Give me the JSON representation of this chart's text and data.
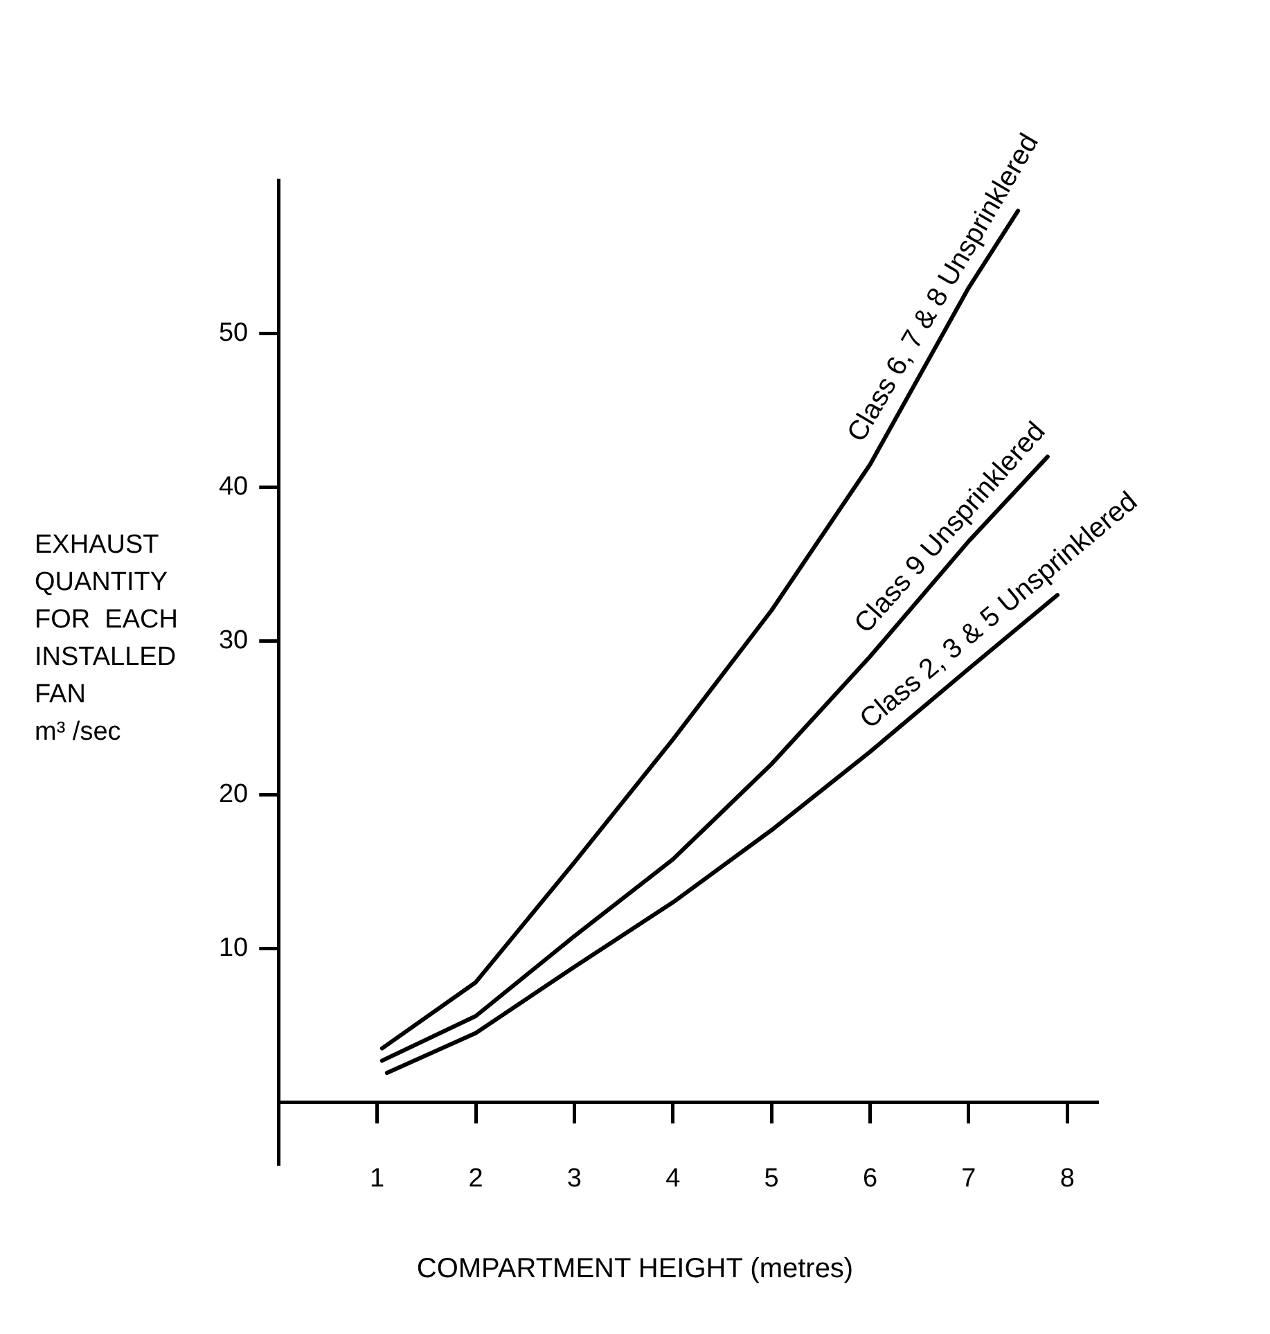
{
  "chart_data": {
    "type": "line",
    "xlabel": "COMPARTMENT HEIGHT (metres)",
    "ylabel": "EXHAUST\nQUANTITY\nFOR  EACH\nINSTALLED\nFAN\nm³ /sec",
    "xlim": [
      0,
      8.3
    ],
    "ylim": [
      -4,
      60
    ],
    "xticks": [
      1,
      2,
      3,
      4,
      5,
      6,
      7,
      8
    ],
    "yticks": [
      10,
      20,
      30,
      40,
      50
    ],
    "grid": false,
    "legend": false,
    "marker": "none",
    "line_style": "solid",
    "series": [
      {
        "name": "Class 6, 7 & 8 Unsprinklered",
        "color": "#000000",
        "x": [
          1.05,
          2,
          3,
          4,
          5,
          6,
          7,
          7.5
        ],
        "values": [
          3.5,
          7.8,
          15.6,
          23.6,
          32,
          41.5,
          53,
          58
        ]
      },
      {
        "name": "Class 9 Unsprinklered",
        "color": "#000000",
        "x": [
          1.05,
          2,
          3,
          4,
          5,
          6,
          7,
          7.8
        ],
        "values": [
          2.7,
          5.6,
          10.8,
          15.8,
          22,
          29,
          36.5,
          42
        ]
      },
      {
        "name": "Class 2, 3 & 5 Unsprinklered",
        "color": "#000000",
        "x": [
          1.1,
          2,
          3,
          4,
          5,
          6,
          7,
          7.9
        ],
        "values": [
          1.9,
          4.5,
          8.8,
          13,
          17.7,
          22.8,
          28.2,
          33
        ]
      }
    ]
  }
}
